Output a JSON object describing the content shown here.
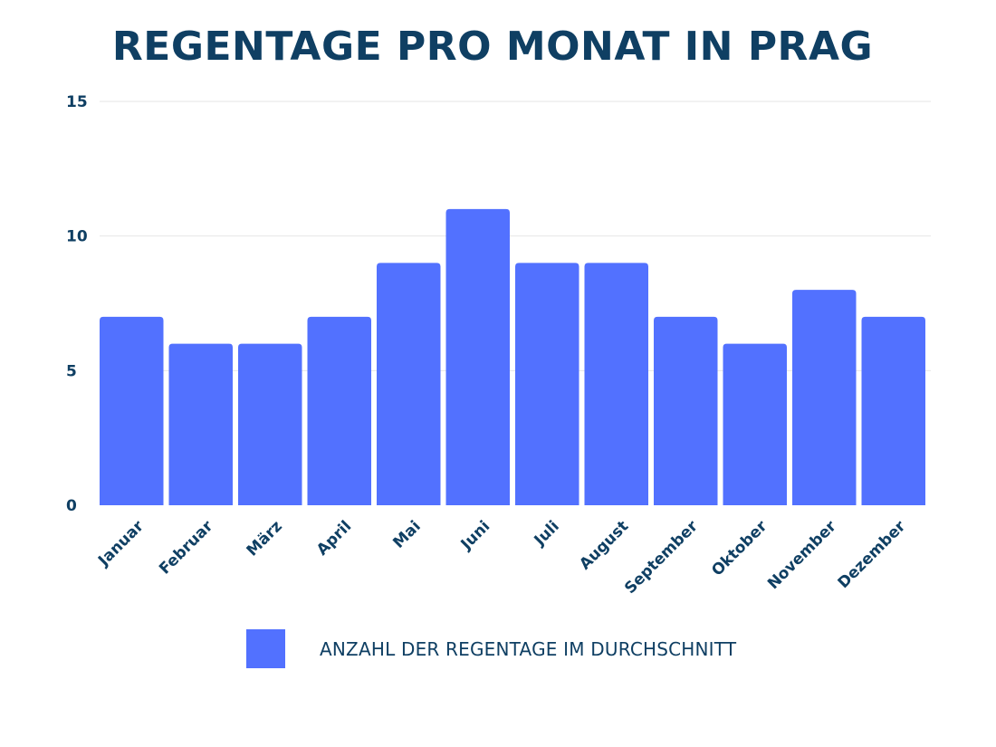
{
  "chart_data": {
    "type": "bar",
    "title": "REGENTAGE PRO MONAT IN PRAG",
    "categories": [
      "Januar",
      "Februar",
      "März",
      "April",
      "Mai",
      "Juni",
      "Juli",
      "August",
      "September",
      "Oktober",
      "November",
      "Dezember"
    ],
    "series": [
      {
        "name": "ANZAHL DER REGENTAGE IM DURCHSCHNITT",
        "values": [
          7,
          6,
          6,
          7,
          9,
          11,
          9,
          9,
          7,
          6,
          8,
          7
        ]
      }
    ],
    "xlabel": "",
    "ylabel": "",
    "ylim": [
      0,
      15
    ],
    "yticks": [
      0,
      5,
      10,
      15
    ],
    "grid": true,
    "legend_position": "bottom-center",
    "colors": {
      "bar": "#5271ff",
      "text": "#0f3f63",
      "grid": "#e6e6e6"
    }
  }
}
